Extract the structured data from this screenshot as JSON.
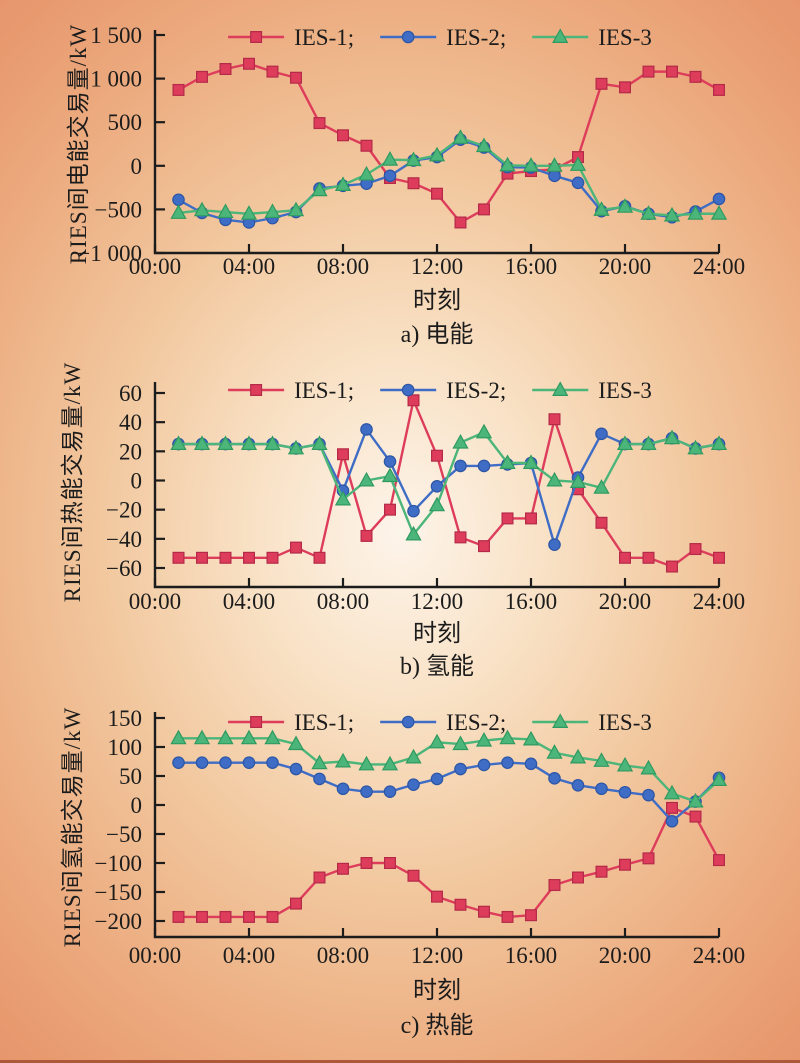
{
  "figure": {
    "kind": "three-panel scientific line figure",
    "text_color": "#1c1c1c",
    "background": {
      "center": "#fdf4ea",
      "mid": "#f2c89f",
      "edge": "#e8996e",
      "bottom_border": "#ae5a3a"
    }
  },
  "chart_data": [
    {
      "type": "line",
      "caption": "a) 电能",
      "ylabel": "RIES间电能交易量/kW",
      "xlabel": "时刻",
      "grid": false,
      "legend_position": "top-center-inside",
      "xlim_hours": [
        0,
        24
      ],
      "ylim": [
        -1000,
        1500
      ],
      "xtick_hours": [
        0,
        4,
        8,
        12,
        16,
        20,
        24
      ],
      "xtick_labels": [
        "00:00",
        "04:00",
        "08:00",
        "12:00",
        "16:00",
        "20:00",
        "24:00"
      ],
      "ytick_values": [
        1500,
        1000,
        500,
        0,
        -500,
        -1000
      ],
      "ytick_labels": [
        "1 500",
        "1 000",
        "500",
        "0",
        "−500",
        "−1 000"
      ],
      "x": [
        1,
        2,
        3,
        4,
        5,
        6,
        7,
        8,
        9,
        10,
        11,
        12,
        13,
        14,
        15,
        16,
        17,
        18,
        19,
        20,
        21,
        22,
        23,
        24
      ],
      "series": [
        {
          "name": "IES-1",
          "legend_label": "IES-1;",
          "marker": "square",
          "color": "#dd3c5b",
          "marker_edge": "#b42a48",
          "values": [
            870,
            1020,
            1110,
            1170,
            1080,
            1010,
            490,
            350,
            230,
            -140,
            -200,
            -320,
            -650,
            -500,
            -90,
            -60,
            -40,
            100,
            940,
            900,
            1080,
            1080,
            1020,
            870
          ]
        },
        {
          "name": "IES-2",
          "legend_label": "IES-2;",
          "marker": "circle",
          "color": "#3f6dc5",
          "marker_edge": "#2c55a5",
          "values": [
            -390,
            -540,
            -620,
            -650,
            -600,
            -530,
            -260,
            -230,
            -205,
            -115,
            60,
            100,
            300,
            210,
            -15,
            -20,
            -115,
            -195,
            -520,
            -465,
            -550,
            -590,
            -525,
            -380
          ]
        },
        {
          "name": "IES-3",
          "legend_label": "IES-3",
          "marker": "triangle",
          "color": "#4cb57a",
          "marker_edge": "#2f9a60",
          "values": [
            -540,
            -510,
            -530,
            -550,
            -530,
            -510,
            -280,
            -220,
            -100,
            70,
            65,
            120,
            320,
            225,
            5,
            0,
            0,
            10,
            -505,
            -470,
            -550,
            -570,
            -550,
            -550
          ]
        }
      ]
    },
    {
      "type": "line",
      "caption": "b) 氢能",
      "ylabel": "RIES间热能交易量/kW",
      "xlabel": "时刻",
      "grid": false,
      "legend_position": "top-center-inside",
      "xlim_hours": [
        0,
        24
      ],
      "ylim": [
        -60,
        60
      ],
      "xtick_hours": [
        0,
        4,
        8,
        12,
        16,
        20,
        24
      ],
      "xtick_labels": [
        "00:00",
        "04:00",
        "08:00",
        "12:00",
        "16:00",
        "20:00",
        "24:00"
      ],
      "ytick_values": [
        60,
        40,
        20,
        0,
        -20,
        -40,
        -60
      ],
      "ytick_labels": [
        "60",
        "40",
        "20",
        "0",
        "−20",
        "−40",
        "−60"
      ],
      "x": [
        1,
        2,
        3,
        4,
        5,
        6,
        7,
        8,
        9,
        10,
        11,
        12,
        13,
        14,
        15,
        16,
        17,
        18,
        19,
        20,
        21,
        22,
        23,
        24
      ],
      "series": [
        {
          "name": "IES-1",
          "legend_label": "IES-1;",
          "marker": "square",
          "color": "#dd3c5b",
          "marker_edge": "#b42a48",
          "values": [
            -53,
            -53,
            -53,
            -53,
            -53,
            -46,
            -53,
            18,
            -38,
            -20,
            55,
            17,
            -39,
            -45,
            -26,
            -26,
            42,
            -6,
            -29,
            -53,
            -53,
            -59,
            -47,
            -53
          ]
        },
        {
          "name": "IES-2",
          "legend_label": "IES-2;",
          "marker": "circle",
          "color": "#3f6dc5",
          "marker_edge": "#2c55a5",
          "values": [
            25,
            25,
            25,
            25,
            25,
            22,
            25,
            -7,
            35,
            13,
            -21,
            -4,
            10,
            10,
            11,
            12,
            -44,
            2,
            32,
            25,
            25,
            29,
            22,
            25
          ]
        },
        {
          "name": "IES-3",
          "legend_label": "IES-3",
          "marker": "triangle",
          "color": "#4cb57a",
          "marker_edge": "#2f9a60",
          "values": [
            25,
            25,
            25,
            25,
            25,
            22,
            25,
            -13,
            0,
            3,
            -37,
            -17,
            26,
            33,
            12,
            12,
            0,
            -1,
            -5,
            25,
            25,
            29,
            22,
            25
          ]
        }
      ]
    },
    {
      "type": "line",
      "caption": "c) 热能",
      "ylabel": "RIES间氢能交易量/kW",
      "xlabel": "时刻",
      "grid": false,
      "legend_position": "top-center-inside",
      "xlim_hours": [
        0,
        24
      ],
      "ylim": [
        -200,
        150
      ],
      "xtick_hours": [
        0,
        4,
        8,
        12,
        16,
        20,
        24
      ],
      "xtick_labels": [
        "00:00",
        "04:00",
        "08:00",
        "12:00",
        "16:00",
        "20:00",
        "24:00"
      ],
      "ytick_values": [
        150,
        100,
        50,
        0,
        -50,
        -100,
        -150,
        -200
      ],
      "ytick_labels": [
        "150",
        "100",
        "50",
        "0",
        "−50",
        "−100",
        "−150",
        "−200"
      ],
      "x": [
        1,
        2,
        3,
        4,
        5,
        6,
        7,
        8,
        9,
        10,
        11,
        12,
        13,
        14,
        15,
        16,
        17,
        18,
        19,
        20,
        21,
        22,
        23,
        24
      ],
      "series": [
        {
          "name": "IES-1",
          "legend_label": "IES-1;",
          "marker": "square",
          "color": "#dd3c5b",
          "marker_edge": "#b42a48",
          "values": [
            -193,
            -193,
            -193,
            -193,
            -193,
            -170,
            -125,
            -110,
            -100,
            -100,
            -122,
            -158,
            -172,
            -184,
            -193,
            -190,
            -138,
            -125,
            -115,
            -103,
            -92,
            -5,
            -20,
            -95
          ]
        },
        {
          "name": "IES-2",
          "legend_label": "IES-2;",
          "marker": "circle",
          "color": "#3f6dc5",
          "marker_edge": "#2c55a5",
          "values": [
            73,
            73,
            73,
            73,
            73,
            62,
            45,
            28,
            23,
            23,
            35,
            45,
            62,
            69,
            73,
            71,
            46,
            34,
            28,
            22,
            17,
            -28,
            6,
            47
          ]
        },
        {
          "name": "IES-3",
          "legend_label": "IES-3",
          "marker": "triangle",
          "color": "#4cb57a",
          "marker_edge": "#2f9a60",
          "values": [
            115,
            115,
            115,
            115,
            115,
            105,
            72,
            75,
            70,
            70,
            82,
            108,
            105,
            111,
            115,
            113,
            90,
            82,
            76,
            68,
            63,
            20,
            6,
            43
          ]
        }
      ]
    }
  ]
}
